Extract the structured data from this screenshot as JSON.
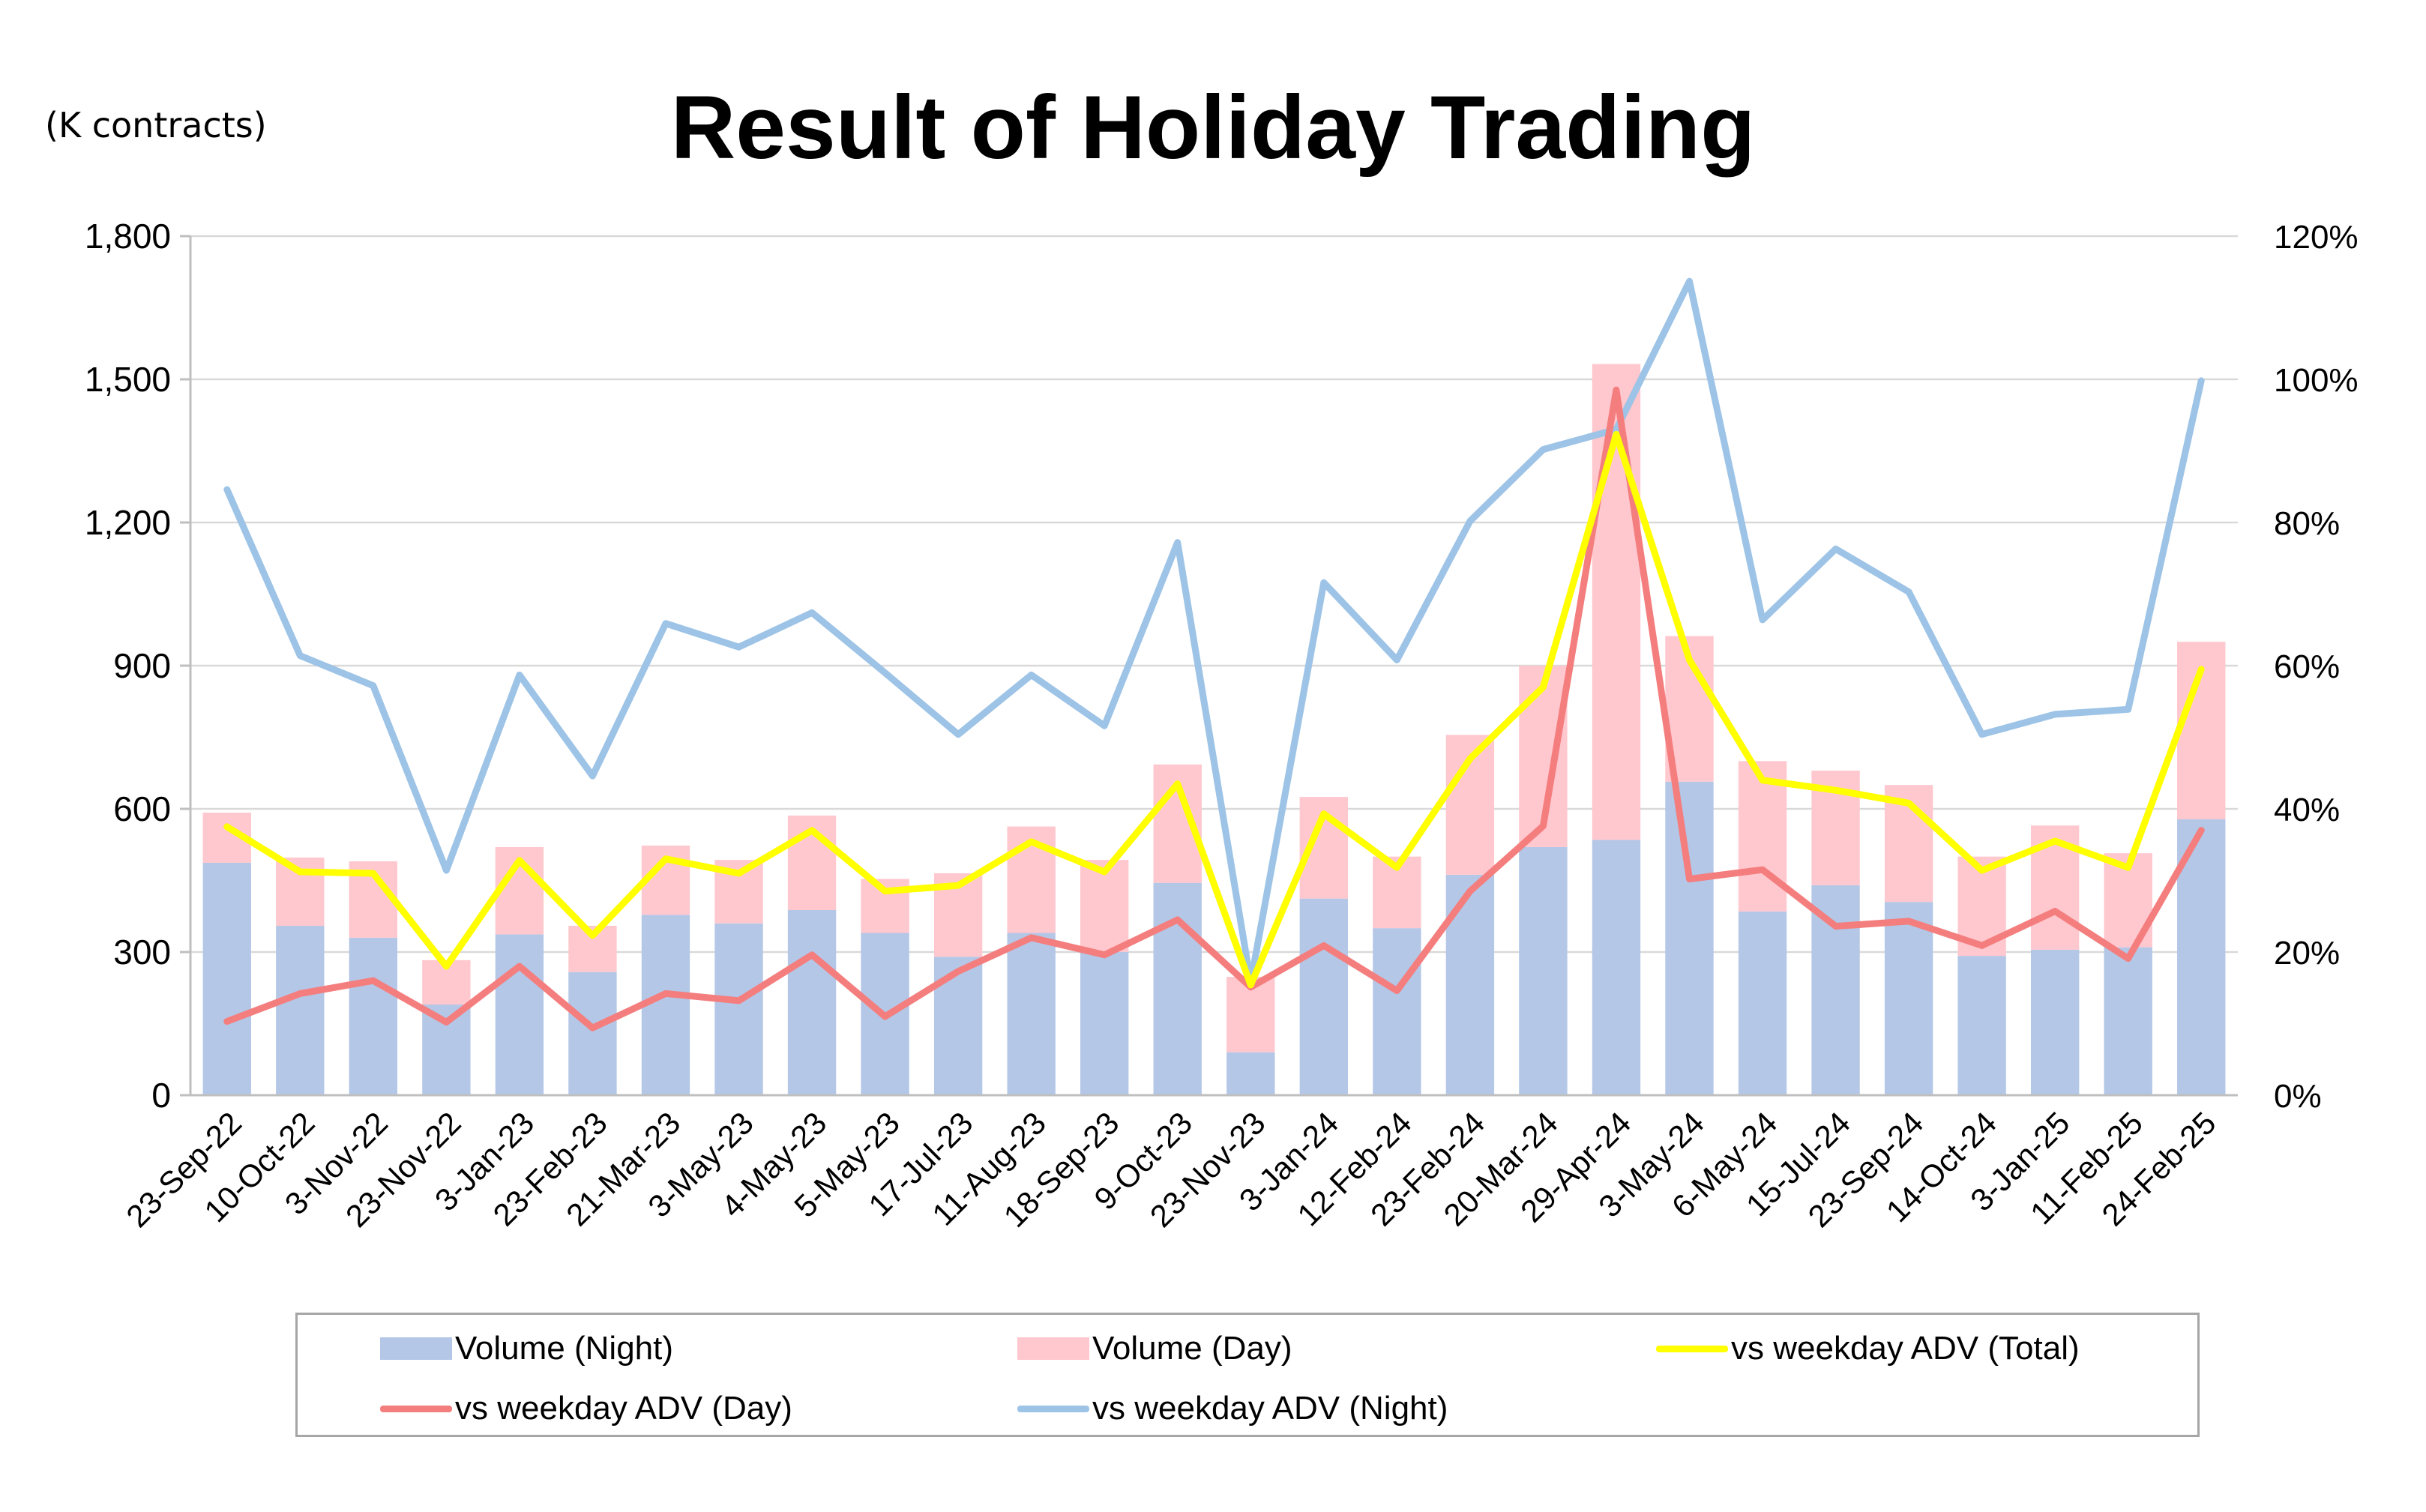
{
  "chart_data": {
    "type": "bar",
    "title": "Result of Holiday Trading",
    "unit_label": "(K contracts)",
    "categories": [
      "23-Sep-22",
      "10-Oct-22",
      "3-Nov-22",
      "23-Nov-22",
      "3-Jan-23",
      "23-Feb-23",
      "21-Mar-23",
      "3-May-23",
      "4-May-23",
      "5-May-23",
      "17-Jul-23",
      "11-Aug-23",
      "18-Sep-23",
      "9-Oct-23",
      "23-Nov-23",
      "3-Jan-24",
      "12-Feb-24",
      "23-Feb-24",
      "20-Mar-24",
      "29-Apr-24",
      "3-May-24",
      "6-May-24",
      "15-Jul-24",
      "23-Sep-24",
      "14-Oct-24",
      "3-Jan-25",
      "11-Feb-25",
      "24-Feb-25"
    ],
    "y_left": {
      "ylim": [
        0,
        1800
      ],
      "ticks": [
        0,
        300,
        600,
        900,
        1200,
        1500,
        1800
      ],
      "tick_labels": [
        "0",
        "300",
        "600",
        "900",
        "1,200",
        "1,500",
        "1,800"
      ]
    },
    "y_right": {
      "ylim": [
        0,
        120
      ],
      "ticks": [
        0,
        20,
        40,
        60,
        80,
        100,
        120
      ],
      "tick_labels": [
        "0%",
        "20%",
        "40%",
        "60%",
        "80%",
        "100%",
        "120%"
      ]
    },
    "stacked_bars": [
      {
        "name": "Volume (Night)",
        "color": "#b4c7e7",
        "values": [
          487,
          355,
          330,
          190,
          337,
          258,
          378,
          360,
          388,
          340,
          290,
          340,
          300,
          445,
          90,
          412,
          350,
          462,
          520,
          535,
          657,
          385,
          440,
          405,
          292,
          305,
          310,
          578
        ]
      },
      {
        "name": "Volume (Day)",
        "color": "#ffc7ce",
        "values": [
          105,
          143,
          160,
          93,
          183,
          97,
          145,
          133,
          198,
          113,
          175,
          223,
          193,
          248,
          158,
          213,
          150,
          293,
          380,
          997,
          305,
          315,
          240,
          245,
          208,
          260,
          197,
          372
        ]
      }
    ],
    "line_series": [
      {
        "name": "vs weekday ADV (Total)",
        "color": "#ffff00",
        "axis": "right",
        "values": [
          37.5,
          31.2,
          31.0,
          18.0,
          32.8,
          22.3,
          33.0,
          31.0,
          37.0,
          28.5,
          29.3,
          35.4,
          31.2,
          43.5,
          15.4,
          39.3,
          31.8,
          47.0,
          57.0,
          92.3,
          60.8,
          44.0,
          42.6,
          40.8,
          31.4,
          35.5,
          31.8,
          59.5
        ]
      },
      {
        "name": "vs weekday ADV (Day)",
        "color": "#f47e7e",
        "axis": "right",
        "values": [
          10.3,
          14.2,
          16.0,
          10.2,
          18.0,
          9.4,
          14.2,
          13.2,
          19.6,
          11.0,
          17.3,
          22.0,
          19.6,
          24.5,
          15.1,
          20.9,
          14.6,
          28.5,
          37.6,
          98.5,
          30.2,
          31.5,
          23.6,
          24.3,
          20.9,
          25.7,
          19.1,
          37.0
        ]
      },
      {
        "name": "vs weekday ADV (Night)",
        "color": "#9dc3e6",
        "axis": "right",
        "values": [
          84.6,
          61.4,
          57.2,
          31.4,
          58.7,
          44.6,
          65.9,
          62.6,
          67.4,
          59.0,
          50.4,
          58.7,
          51.6,
          77.2,
          15.8,
          71.6,
          60.8,
          80.2,
          90.2,
          93.0,
          113.7,
          66.4,
          76.3,
          70.3,
          50.4,
          53.2,
          53.9,
          99.8
        ]
      }
    ],
    "grid": true,
    "legend_position": "bottom"
  },
  "legend": {
    "items": [
      {
        "label": "Volume (Night)",
        "kind": "bar",
        "color": "#b4c7e7"
      },
      {
        "label": "Volume (Day)",
        "kind": "bar",
        "color": "#ffc7ce"
      },
      {
        "label": "vs weekday ADV (Total)",
        "kind": "line",
        "color": "#ffff00"
      },
      {
        "label": "vs weekday ADV (Day)",
        "kind": "line",
        "color": "#f47e7e"
      },
      {
        "label": "vs weekday ADV (Night)",
        "kind": "line",
        "color": "#9dc3e6"
      }
    ]
  }
}
